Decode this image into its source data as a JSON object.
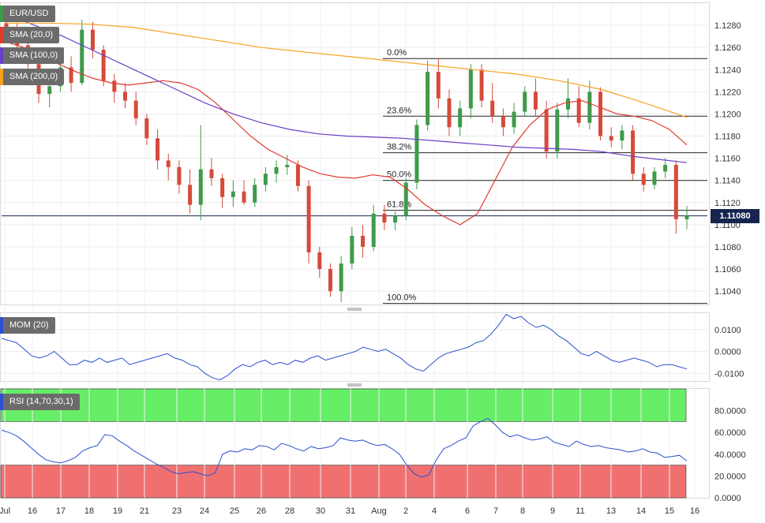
{
  "legend": {
    "symbol": "EUR/USD",
    "sma20": "SMA (20,0)",
    "sma100": "SMA (100,0)",
    "sma200": "SMA (200,0)",
    "mom": "MOM (20)",
    "rsi": "RSI (14,70,30,1)"
  },
  "colors": {
    "up": "#3f9a4a",
    "down": "#d64a3a",
    "sma20": "#e03a2e",
    "sma100": "#6a3fc8",
    "sma200": "#f5a21e",
    "mom": "#2a4fd0",
    "rsi": "#2a4fd0",
    "overbought": "#66ee66",
    "oversold": "#f07070",
    "price_line": "#16244f"
  },
  "last_price": "1.11080",
  "chart_data": [
    {
      "type": "candlestick",
      "panel": "price",
      "ylim": [
        1.1028,
        1.13
      ],
      "y_ticks": [
        "1.1280",
        "1.1260",
        "1.1240",
        "1.1220",
        "1.1200",
        "1.1180",
        "1.1160",
        "1.1140",
        "1.1120",
        "1.1100",
        "1.1080",
        "1.1060",
        "1.1040"
      ],
      "x_labels": [
        "Jul",
        "16",
        "17",
        "18",
        "19",
        "21",
        "23",
        "24",
        "25",
        "26",
        "28",
        "30",
        "31",
        "Aug",
        "2",
        "4",
        "6",
        "7",
        "8",
        "9",
        "11",
        "13",
        "14",
        "15",
        "16"
      ],
      "series": [
        {
          "name": "SMA (20,0)",
          "values": [
            1.1265,
            1.126,
            1.1252,
            1.1245,
            1.1238,
            1.1232,
            1.1228,
            1.1226,
            1.1228,
            1.123,
            1.1228,
            1.1222,
            1.121,
            1.1195,
            1.118,
            1.1168,
            1.116,
            1.1152,
            1.1146,
            1.1143,
            1.1142,
            1.1145,
            1.1143,
            1.1132,
            1.1118,
            1.1108,
            1.11,
            1.111,
            1.114,
            1.117,
            1.119,
            1.1204,
            1.121,
            1.1212,
            1.1206,
            1.12,
            1.1198,
            1.1194,
            1.1186,
            1.1172
          ]
        },
        {
          "name": "SMA (100,0)",
          "values": [
            1.129,
            1.128,
            1.127,
            1.1258,
            1.1246,
            1.1234,
            1.1222,
            1.121,
            1.12,
            1.1192,
            1.1186,
            1.1182,
            1.118,
            1.1179,
            1.1178,
            1.1176,
            1.1174,
            1.1172,
            1.117,
            1.1169,
            1.1168,
            1.1166,
            1.1162,
            1.1159,
            1.1156
          ]
        },
        {
          "name": "SMA (200,0)",
          "values": [
            1.1282,
            1.1282,
            1.1281,
            1.1278,
            1.1272,
            1.1266,
            1.126,
            1.1256,
            1.1252,
            1.1248,
            1.1244,
            1.124,
            1.1236,
            1.123,
            1.1222,
            1.121,
            1.1197
          ]
        }
      ],
      "candles": [
        [
          1.1282,
          1.129,
          1.1265,
          1.1275
        ],
        [
          1.1275,
          1.1282,
          1.1255,
          1.1262
        ],
        [
          1.1262,
          1.127,
          1.124,
          1.1245
        ],
        [
          1.1245,
          1.125,
          1.121,
          1.1218
        ],
        [
          1.1218,
          1.1232,
          1.1206,
          1.1225
        ],
        [
          1.1225,
          1.1248,
          1.122,
          1.1242
        ],
        [
          1.1242,
          1.1252,
          1.122,
          1.1228
        ],
        [
          1.1228,
          1.1285,
          1.1226,
          1.1276
        ],
        [
          1.1276,
          1.1283,
          1.125,
          1.1258
        ],
        [
          1.1258,
          1.1262,
          1.1225,
          1.123
        ],
        [
          1.123,
          1.1236,
          1.121,
          1.122
        ],
        [
          1.122,
          1.1228,
          1.1205,
          1.1212
        ],
        [
          1.1212,
          1.122,
          1.119,
          1.1196
        ],
        [
          1.1196,
          1.12,
          1.1172,
          1.1178
        ],
        [
          1.1178,
          1.1186,
          1.115,
          1.1158
        ],
        [
          1.1158,
          1.1164,
          1.114,
          1.1152
        ],
        [
          1.1152,
          1.1158,
          1.1128,
          1.1136
        ],
        [
          1.1136,
          1.115,
          1.111,
          1.1118
        ],
        [
          1.1118,
          1.119,
          1.1104,
          1.115
        ],
        [
          1.115,
          1.116,
          1.1135,
          1.1142
        ],
        [
          1.1142,
          1.1146,
          1.1115,
          1.1125
        ],
        [
          1.1125,
          1.114,
          1.1116,
          1.113
        ],
        [
          1.113,
          1.114,
          1.1118,
          1.112
        ],
        [
          1.112,
          1.1142,
          1.1116,
          1.1136
        ],
        [
          1.1136,
          1.1152,
          1.113,
          1.1146
        ],
        [
          1.1146,
          1.1158,
          1.1138,
          1.1152
        ],
        [
          1.1152,
          1.1163,
          1.1145,
          1.1154
        ],
        [
          1.1154,
          1.1158,
          1.113,
          1.1135
        ],
        [
          1.1135,
          1.114,
          1.1065,
          1.1075
        ],
        [
          1.1075,
          1.108,
          1.1052,
          1.106
        ],
        [
          1.106,
          1.1065,
          1.1035,
          1.104
        ],
        [
          1.104,
          1.1072,
          1.103,
          1.1065
        ],
        [
          1.1065,
          1.1098,
          1.106,
          1.109
        ],
        [
          1.109,
          1.11,
          1.107,
          1.108
        ],
        [
          1.108,
          1.1118,
          1.1076,
          1.111
        ],
        [
          1.111,
          1.1118,
          1.1095,
          1.1102
        ],
        [
          1.1102,
          1.1112,
          1.1095,
          1.1108
        ],
        [
          1.1108,
          1.1142,
          1.1104,
          1.1138
        ],
        [
          1.1138,
          1.1195,
          1.1132,
          1.119
        ],
        [
          1.119,
          1.1248,
          1.1185,
          1.1238
        ],
        [
          1.1238,
          1.125,
          1.1205,
          1.1214
        ],
        [
          1.1214,
          1.1222,
          1.118,
          1.1188
        ],
        [
          1.1188,
          1.1212,
          1.118,
          1.1205
        ],
        [
          1.1205,
          1.1245,
          1.1196,
          1.124
        ],
        [
          1.124,
          1.1245,
          1.1206,
          1.1212
        ],
        [
          1.1212,
          1.1228,
          1.1192,
          1.1198
        ],
        [
          1.1198,
          1.1205,
          1.118,
          1.1188
        ],
        [
          1.1188,
          1.121,
          1.1182,
          1.1202
        ],
        [
          1.1202,
          1.1225,
          1.1198,
          1.122
        ],
        [
          1.122,
          1.1232,
          1.1198,
          1.1204
        ],
        [
          1.1204,
          1.1212,
          1.116,
          1.1166
        ],
        [
          1.1166,
          1.121,
          1.116,
          1.1204
        ],
        [
          1.1204,
          1.1232,
          1.1196,
          1.1214
        ],
        [
          1.1214,
          1.1225,
          1.1188,
          1.1192
        ],
        [
          1.1192,
          1.123,
          1.1186,
          1.122
        ],
        [
          1.122,
          1.1224,
          1.1176,
          1.118
        ],
        [
          1.118,
          1.1188,
          1.117,
          1.1176
        ],
        [
          1.1176,
          1.119,
          1.1168,
          1.1185
        ],
        [
          1.1185,
          1.119,
          1.114,
          1.1146
        ],
        [
          1.1146,
          1.1152,
          1.113,
          1.1136
        ],
        [
          1.1136,
          1.1152,
          1.1132,
          1.1148
        ],
        [
          1.1148,
          1.116,
          1.1142,
          1.1154
        ],
        [
          1.1154,
          1.1158,
          1.1092,
          1.1105
        ],
        [
          1.1105,
          1.1117,
          1.1096,
          1.1108
        ]
      ],
      "fibonacci": [
        {
          "label": "0.0%",
          "price": 1.125
        },
        {
          "label": "23.6%",
          "price": 1.1198
        },
        {
          "label": "38.2%",
          "price": 1.1165
        },
        {
          "label": "50.0%",
          "price": 1.114
        },
        {
          "label": "61.8%",
          "price": 1.1113
        },
        {
          "label": "100.0%",
          "price": 1.1029
        }
      ]
    },
    {
      "type": "line",
      "panel": "momentum",
      "ylim": [
        -0.0135,
        0.0175
      ],
      "y_ticks": [
        "0.0100",
        "0.0000",
        "-0.0100"
      ],
      "series": [
        {
          "name": "MOM (20)",
          "values": [
            0.006,
            0.005,
            0.004,
            0.001,
            -0.002,
            -0.003,
            -0.002,
            0.0,
            -0.003,
            -0.006,
            -0.006,
            -0.004,
            -0.005,
            -0.003,
            -0.005,
            -0.004,
            -0.003,
            -0.006,
            -0.005,
            -0.004,
            -0.003,
            -0.002,
            -0.001,
            -0.003,
            -0.004,
            -0.006,
            -0.007,
            -0.01,
            -0.012,
            -0.013,
            -0.011,
            -0.008,
            -0.006,
            -0.007,
            -0.005,
            -0.004,
            -0.006,
            -0.005,
            -0.006,
            -0.004,
            -0.005,
            -0.003,
            -0.002,
            -0.004,
            -0.003,
            -0.002,
            -0.001,
            0.0,
            0.002,
            0.001,
            0.0,
            0.001,
            -0.001,
            -0.003,
            -0.006,
            -0.008,
            -0.009,
            -0.006,
            -0.003,
            -0.001,
            0.0,
            0.001,
            0.002,
            0.004,
            0.005,
            0.008,
            0.012,
            0.017,
            0.015,
            0.016,
            0.013,
            0.011,
            0.012,
            0.01,
            0.007,
            0.005,
            0.002,
            -0.001,
            -0.002,
            0.0,
            -0.002,
            -0.004,
            -0.005,
            -0.004,
            -0.003,
            -0.004,
            -0.005,
            -0.007,
            -0.006,
            -0.006,
            -0.007,
            -0.008
          ]
        }
      ]
    },
    {
      "type": "line",
      "panel": "rsi",
      "ylim": [
        0,
        100
      ],
      "y_ticks": [
        "80.0000",
        "60.0000",
        "40.0000",
        "20.0000",
        "0.0000"
      ],
      "overbought": 70,
      "oversold": 30,
      "series": [
        {
          "name": "RSI (14,70,30,1)",
          "values": [
            62,
            60,
            57,
            52,
            46,
            40,
            35,
            33,
            32,
            34,
            37,
            43,
            46,
            48,
            58,
            57,
            52,
            48,
            43,
            39,
            35,
            31,
            28,
            24,
            22,
            23,
            24,
            22,
            20,
            23,
            40,
            43,
            42,
            45,
            44,
            48,
            47,
            44,
            50,
            48,
            45,
            43,
            47,
            45,
            46,
            48,
            55,
            53,
            52,
            53,
            50,
            48,
            49,
            45,
            40,
            30,
            22,
            19,
            21,
            35,
            45,
            48,
            52,
            55,
            66,
            70,
            73,
            67,
            60,
            56,
            58,
            55,
            53,
            54,
            56,
            51,
            49,
            47,
            52,
            49,
            47,
            48,
            46,
            45,
            44,
            42,
            43,
            45,
            42,
            41,
            37,
            38,
            39,
            34
          ]
        }
      ]
    }
  ]
}
